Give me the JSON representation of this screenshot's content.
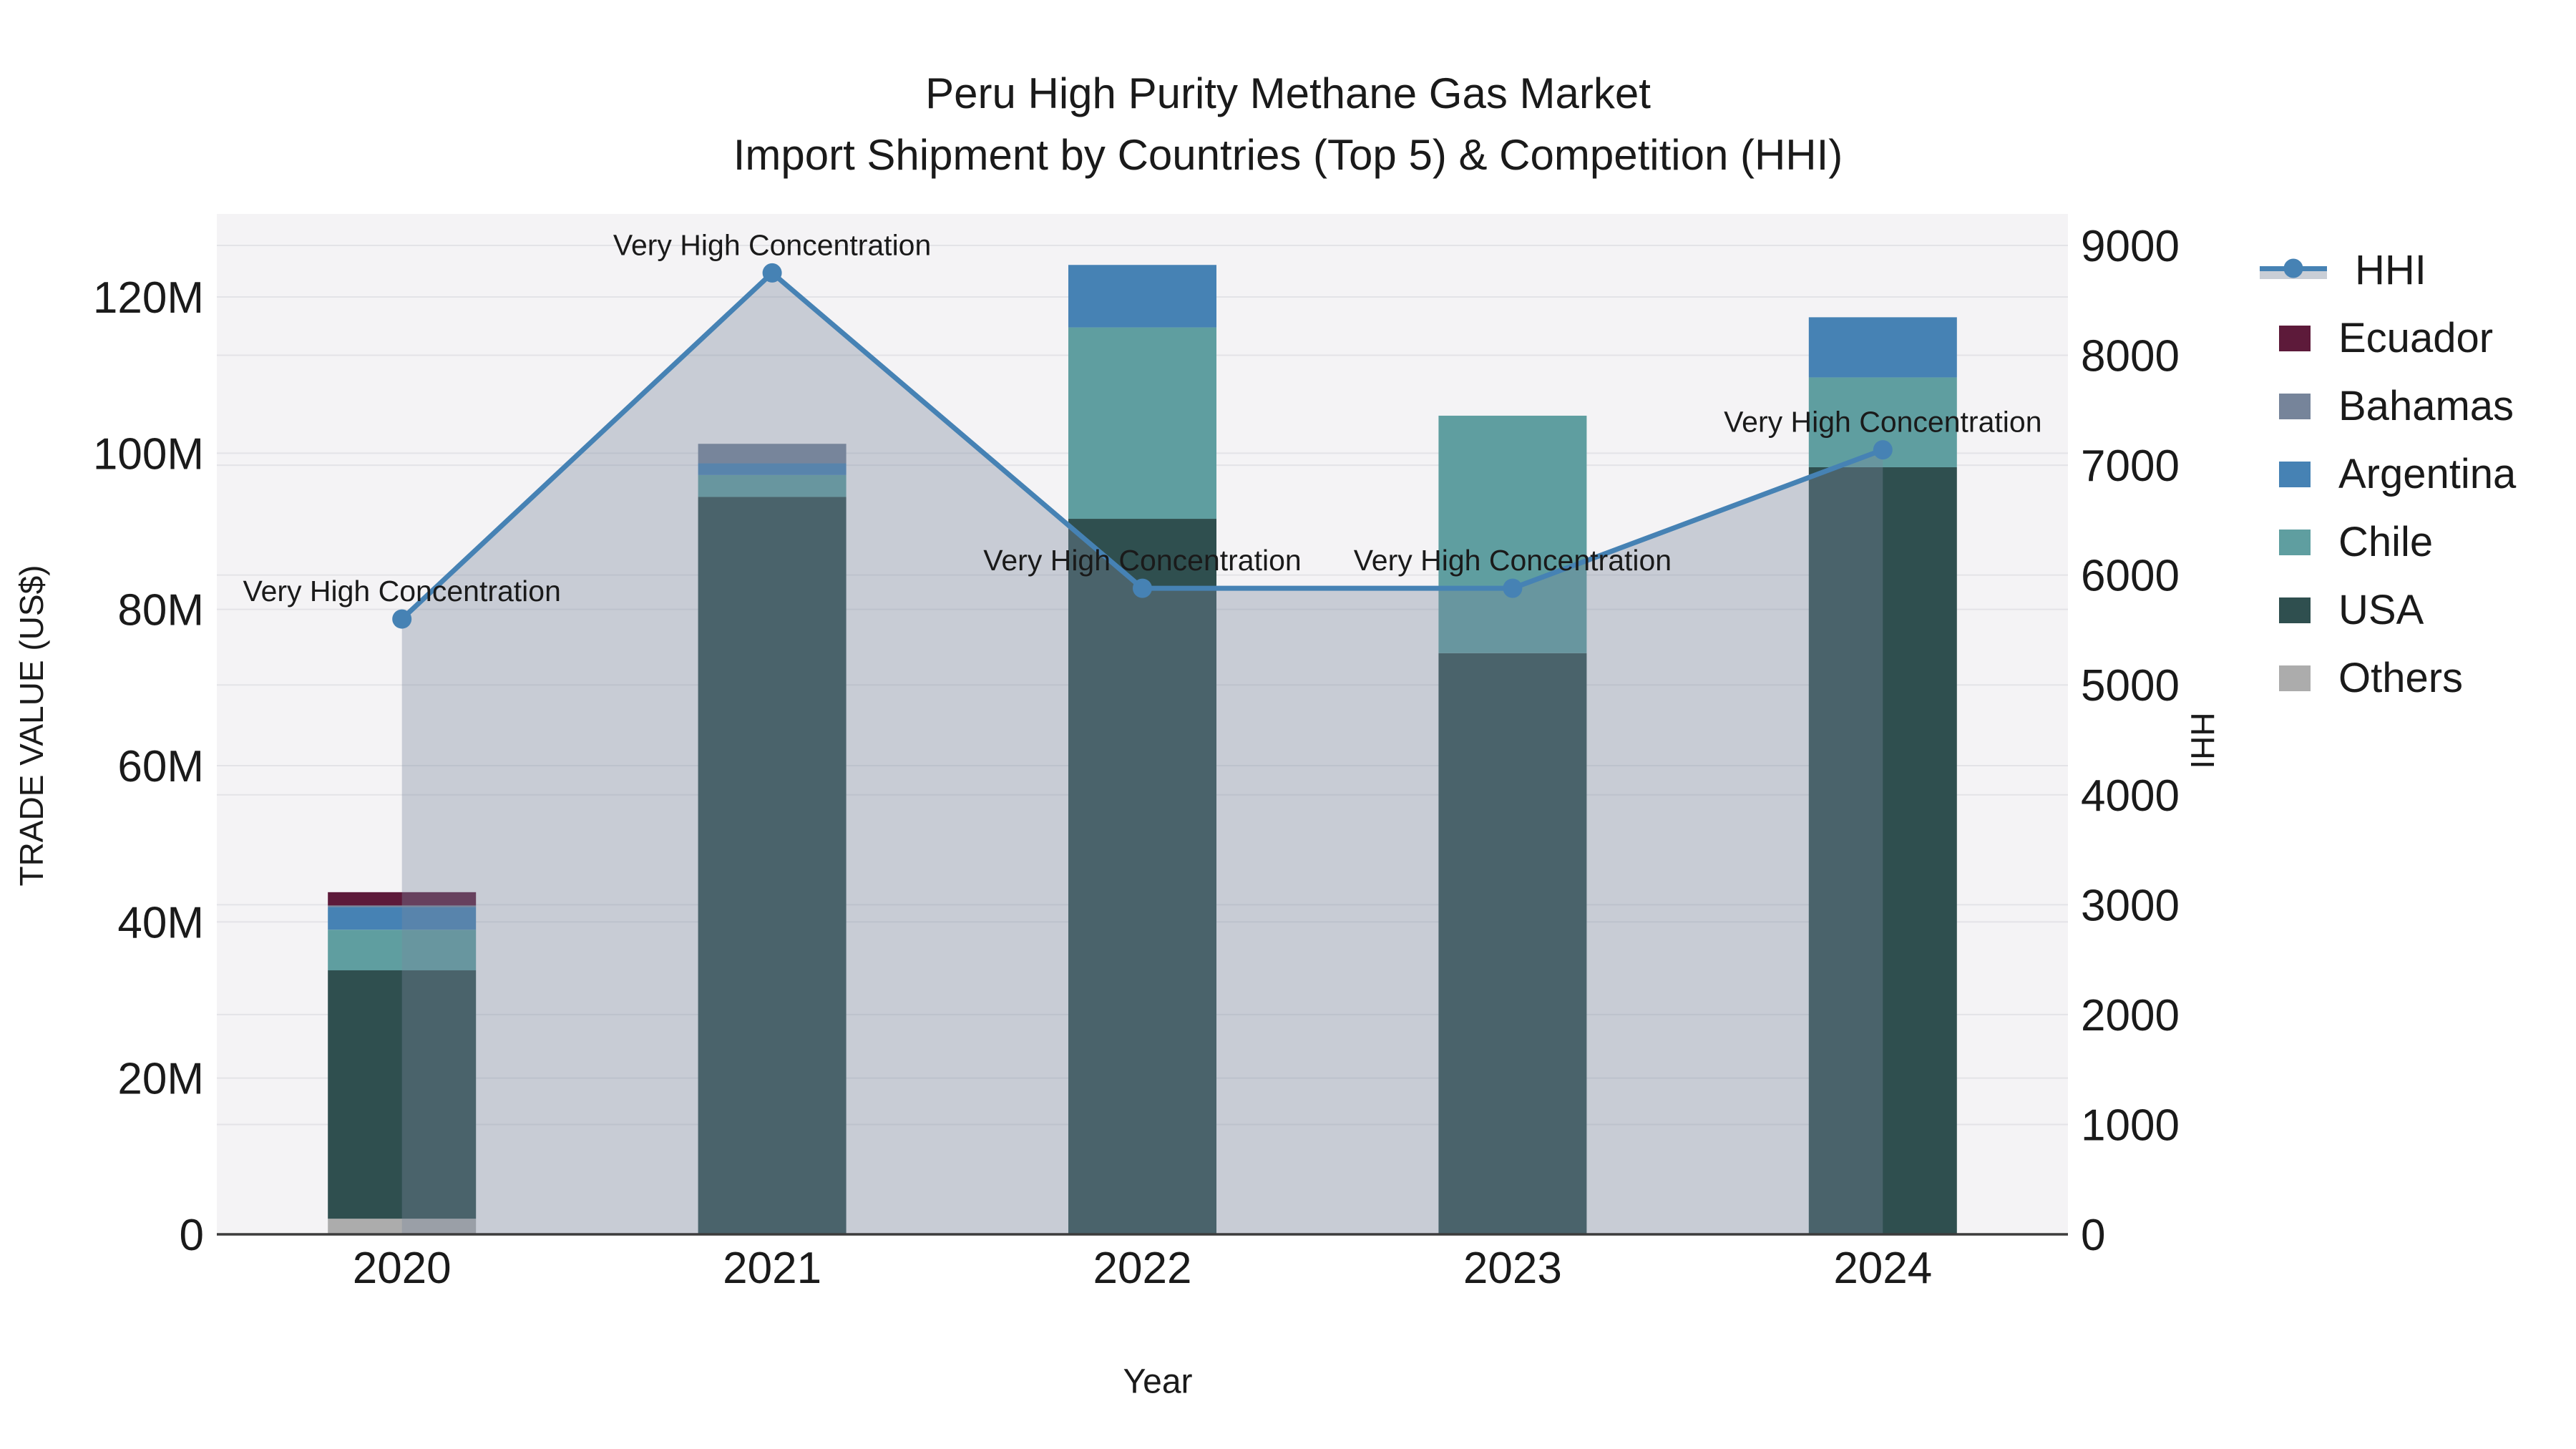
{
  "title": {
    "line1": "Peru High Purity Methane Gas Market",
    "line2": "Import Shipment by Countries (Top 5) & Competition (HHI)"
  },
  "axes": {
    "x_title": "Year",
    "y_left_title": "TRADE VALUE (US$)",
    "y_right_title": "HHI"
  },
  "legend": {
    "items": [
      {
        "label": "HHI",
        "type": "line",
        "color": "#4682B4"
      },
      {
        "label": "Ecuador",
        "type": "swatch",
        "color": "#5D1A3A"
      },
      {
        "label": "Bahamas",
        "type": "swatch",
        "color": "#76849A"
      },
      {
        "label": "Argentina",
        "type": "swatch",
        "color": "#4682B4"
      },
      {
        "label": "Chile",
        "type": "swatch",
        "color": "#5F9EA0"
      },
      {
        "label": "USA",
        "type": "swatch",
        "color": "#2F4F4F"
      },
      {
        "label": "Others",
        "type": "swatch",
        "color": "#ACACAC"
      }
    ]
  },
  "colors": {
    "plot_background": "#F4F3F5",
    "gridline": "#E3E3E7",
    "axis_line": "#3C3C3C",
    "hhi_line": "#4682B4",
    "hhi_area_fill": "rgba(122,136,158,0.36)",
    "text": "#1A1A1A"
  },
  "chart_data": {
    "type": "bar",
    "subtype": "stacked-bars-with-line-overlay",
    "title": "Peru High Purity Methane Gas Market — Import Shipment by Countries (Top 5) & Competition (HHI)",
    "categories": [
      "2020",
      "2021",
      "2022",
      "2023",
      "2024"
    ],
    "value_unit": "Trade value, million US$",
    "stack_order_bottom_to_top": [
      "Others",
      "USA",
      "Chile",
      "Argentina",
      "Bahamas",
      "Ecuador"
    ],
    "series": [
      {
        "name": "Others",
        "color": "#ACACAC",
        "values": [
          2.0,
          0,
          0,
          0,
          0
        ]
      },
      {
        "name": "USA",
        "color": "#2F4F4F",
        "values": [
          31.8,
          94.4,
          91.6,
          74.4,
          98.2
        ]
      },
      {
        "name": "Chile",
        "color": "#5F9EA0",
        "values": [
          5.2,
          2.8,
          24.5,
          30.4,
          11.5
        ]
      },
      {
        "name": "Argentina",
        "color": "#4682B4",
        "values": [
          2.9,
          1.5,
          8.0,
          0,
          7.7
        ]
      },
      {
        "name": "Bahamas",
        "color": "#76849A",
        "values": [
          0.2,
          2.5,
          0,
          0,
          0
        ]
      },
      {
        "name": "Ecuador",
        "color": "#5D1A3A",
        "values": [
          1.7,
          0,
          0,
          0,
          0
        ]
      }
    ],
    "bar_totals_millions": [
      43.8,
      101.2,
      124.1,
      104.8,
      117.4
    ],
    "hhi": {
      "name": "HHI",
      "axis": "right",
      "color": "#4682B4",
      "area_fill": "rgba(122,136,158,0.36)",
      "values": [
        5600,
        8750,
        5880,
        5880,
        7140
      ],
      "annotations": [
        "Very High Concentration",
        "Very High Concentration",
        "Very High Concentration",
        "Very High Concentration",
        "Very High Concentration"
      ]
    },
    "left_axis": {
      "title": "TRADE VALUE (US$)",
      "tick_values_millions": [
        0,
        20,
        40,
        60,
        80,
        100,
        120
      ],
      "tick_labels": [
        "0",
        "20M",
        "40M",
        "60M",
        "80M",
        "100M",
        "120M"
      ],
      "range_millions": [
        0,
        130.6
      ]
    },
    "right_axis": {
      "title": "HHI",
      "tick_values": [
        0,
        1000,
        2000,
        3000,
        4000,
        5000,
        6000,
        7000,
        8000,
        9000
      ],
      "range": [
        0,
        9287
      ]
    },
    "x_axis": {
      "title": "Year"
    },
    "grid": true,
    "legend_position": "right"
  }
}
